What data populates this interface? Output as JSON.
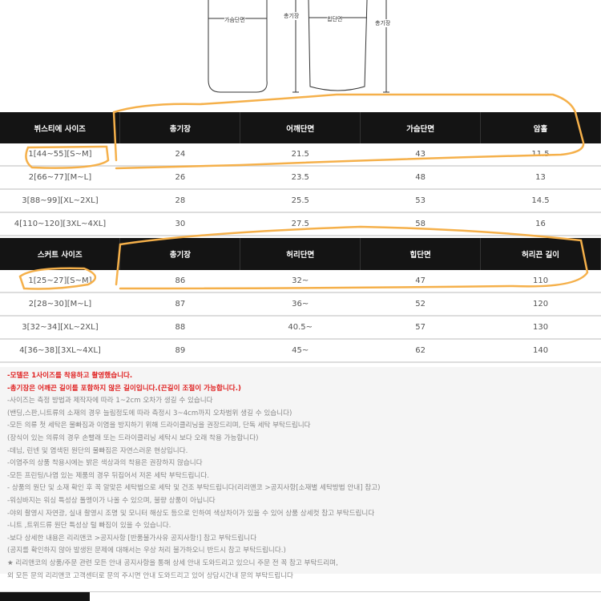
{
  "diagram": {
    "chest_label": "가슴단면",
    "length_label_1": "총기장",
    "hip_label": "힙단면",
    "length_label_2": "총기장"
  },
  "top_table": {
    "headers": [
      "뷔스티에 사이즈",
      "총기장",
      "어깨단면",
      "가슴단면",
      "암홀"
    ],
    "rows": [
      [
        "1[44~55][S~M]",
        "24",
        "21.5",
        "43",
        "11.5"
      ],
      [
        "2[66~77][M~L]",
        "26",
        "23.5",
        "48",
        "13"
      ],
      [
        "3[88~99][XL~2XL]",
        "28",
        "25.5",
        "53",
        "14.5"
      ],
      [
        "4[110~120][3XL~4XL]",
        "30",
        "27.5",
        "58",
        "16"
      ]
    ]
  },
  "skirt_table": {
    "headers": [
      "스커트 사이즈",
      "총기장",
      "허리단면",
      "힙단면",
      "허리끈 길이"
    ],
    "rows": [
      [
        "1[25~27][S~M]",
        "86",
        "32~",
        "47",
        "110"
      ],
      [
        "2[28~30][M~L]",
        "87",
        "36~",
        "52",
        "120"
      ],
      [
        "3[32~34][XL~2XL]",
        "88",
        "40.5~",
        "57",
        "130"
      ],
      [
        "4[36~38][3XL~4XL]",
        "89",
        "45~",
        "62",
        "140"
      ]
    ]
  },
  "notes": {
    "red": [
      "-모델은 1사이즈를 착용하고 촬영했습니다.",
      "-총기장은 어깨끈 길이를 포함하지 않은 길이입니다.(끈길이 조절이 가능합니다.)"
    ],
    "lines": [
      "-사이즈는 측정 방법과 제작자에 따라 1~2cm 오차가 생길 수 있습니다",
      "(밴딩,스판,니트류의 소재의 경우 늘림정도에 따라 측정시 3~4cm까지 오차범위 생길 수 있습니다)",
      "-모든 의류 첫 세탁은 물빠짐과 이염을 방지하기 위해 드라이클리닝을 권장드리며, 단독 세탁 부탁드립니다",
      "(장식이 있는 의류의 경우 손빨래 또는 드라이클리닝 세탁시 보다 오래 착용 가능합니다)",
      "-데님, 린넨 및 염색된 원단의 물빠짐은 자연스러운 현상입니다.",
      "-이염주의 상품 착용시에는 밝은 색상과의 착용은 권장하지 않습니다",
      "-모든 프린팅/나염 있는 제품의 경우 뒤집어서 저온 세탁 부탁드립니다.",
      "- 상품의 원단 및 소재 확인 후 꼭 알맞은 세탁법으로 세탁 및 건조 부탁드립니다(리리앤코 >공지사항[소재별 세탁방법 안내] 참고)",
      "-워싱바지는 워싱 특성상 돌멩이가 나올 수 있으며, 불량 상품이 아닙니다",
      "-야외 촬영시 자연광, 실내 촬영시 조명 및 모니터 해상도 등으로 인하여 색상차이가 있을 수 있어 상품 상세컷 참고 부탁드립니다",
      "-니트 ,트위드류 원단 특성상 털 빠짐이 있을 수 있습니다.",
      "-보다 상세한 내용은 리리앤코 >공지사항 [반품불가사유 공지사항!] 참고 부탁드립니다",
      "(공지를 확인하지 않아 발생된 문제에 대해서는 우상 처리 불가하오니 반드시 참고 부탁드립니다.)",
      "★ 리리앤코의 상품/주문 관련 모든 안내 공지사항을 통해 상세 안내 도와드리고 있으니 주문 전 꼭 참고 부탁드리며,",
      "외 모든 문의 리리앤코 고객센터로 문의 주시면 안내 도와드리고 있어 상담시간내 문의 부탁드립니다"
    ]
  },
  "colors": {
    "header_bg": "#141414",
    "annotation": "#f5b04a",
    "notice_red": "#e02020"
  }
}
